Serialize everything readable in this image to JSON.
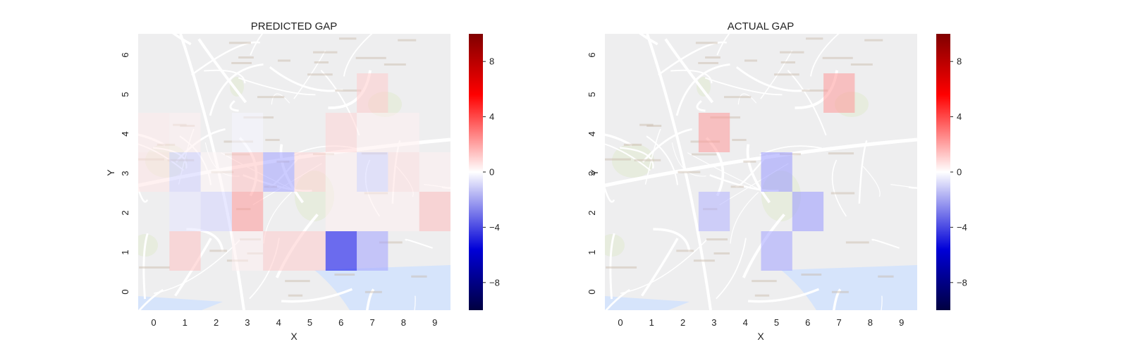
{
  "chart_data": [
    {
      "type": "heatmap",
      "title": "PREDICTED GAP",
      "xlabel": "X",
      "ylabel": "Y",
      "x_ticks": [
        "0",
        "1",
        "2",
        "3",
        "4",
        "5",
        "6",
        "7",
        "8",
        "9"
      ],
      "y_ticks": [
        "0",
        "1",
        "2",
        "3",
        "4",
        "5",
        "6"
      ],
      "colormap": "seismic",
      "vmin": -10,
      "vmax": 10,
      "background": "street map",
      "cells": [
        {
          "x": 1,
          "y": 1,
          "value": 1.2
        },
        {
          "x": 3,
          "y": 1,
          "value": 0.3
        },
        {
          "x": 4,
          "y": 1,
          "value": 1.0
        },
        {
          "x": 5,
          "y": 1,
          "value": 1.0
        },
        {
          "x": 6,
          "y": 1,
          "value": -5.5
        },
        {
          "x": 7,
          "y": 1,
          "value": -1.8
        },
        {
          "x": 1,
          "y": 2,
          "value": -0.5
        },
        {
          "x": 2,
          "y": 2,
          "value": -0.8
        },
        {
          "x": 3,
          "y": 2,
          "value": 2.0
        },
        {
          "x": 6,
          "y": 2,
          "value": 0.3
        },
        {
          "x": 7,
          "y": 2,
          "value": 0.3
        },
        {
          "x": 8,
          "y": 2,
          "value": 0.3
        },
        {
          "x": 9,
          "y": 2,
          "value": 1.3
        },
        {
          "x": 0,
          "y": 3,
          "value": 0.5
        },
        {
          "x": 1,
          "y": 3,
          "value": -0.9
        },
        {
          "x": 2,
          "y": 3,
          "value": 0.2
        },
        {
          "x": 3,
          "y": 3,
          "value": 1.2
        },
        {
          "x": 4,
          "y": 3,
          "value": -1.8
        },
        {
          "x": 5,
          "y": 3,
          "value": 0.8
        },
        {
          "x": 6,
          "y": 3,
          "value": 0.3
        },
        {
          "x": 7,
          "y": 3,
          "value": -0.8
        },
        {
          "x": 8,
          "y": 3,
          "value": 0.6
        },
        {
          "x": 9,
          "y": 3,
          "value": 0.3
        },
        {
          "x": 0,
          "y": 4,
          "value": 0.4
        },
        {
          "x": 1,
          "y": 4,
          "value": 0.3
        },
        {
          "x": 3,
          "y": 4,
          "value": -0.2
        },
        {
          "x": 6,
          "y": 4,
          "value": 0.8
        },
        {
          "x": 7,
          "y": 4,
          "value": 0.3
        },
        {
          "x": 8,
          "y": 4,
          "value": 0.3
        },
        {
          "x": 7,
          "y": 5,
          "value": 1.0
        }
      ]
    },
    {
      "type": "heatmap",
      "title": "ACTUAL GAP",
      "xlabel": "X",
      "ylabel": "Y",
      "x_ticks": [
        "0",
        "1",
        "2",
        "3",
        "4",
        "5",
        "6",
        "7",
        "8",
        "9"
      ],
      "y_ticks": [
        "0",
        "1",
        "2",
        "3",
        "4",
        "5",
        "6"
      ],
      "colormap": "seismic",
      "vmin": -10,
      "vmax": 10,
      "background": "street map",
      "cells": [
        {
          "x": 5,
          "y": 1,
          "value": -1.8
        },
        {
          "x": 3,
          "y": 2,
          "value": -1.5
        },
        {
          "x": 6,
          "y": 2,
          "value": -2.0
        },
        {
          "x": 5,
          "y": 3,
          "value": -2.0
        },
        {
          "x": 3,
          "y": 4,
          "value": 2.0
        },
        {
          "x": 7,
          "y": 5,
          "value": 2.0
        }
      ]
    }
  ],
  "colorbar": {
    "ticks": [
      {
        "value": 8,
        "label": "8"
      },
      {
        "value": 4,
        "label": "4"
      },
      {
        "value": 0,
        "label": "0"
      },
      {
        "value": -4,
        "label": "−4"
      },
      {
        "value": -8,
        "label": "−8"
      }
    ]
  },
  "colors": {
    "map_bg": "#eeeeef",
    "road": "#ffffff",
    "water": "#d6e4fb",
    "park": "#e5ebda",
    "label": "#c8b9a8"
  }
}
